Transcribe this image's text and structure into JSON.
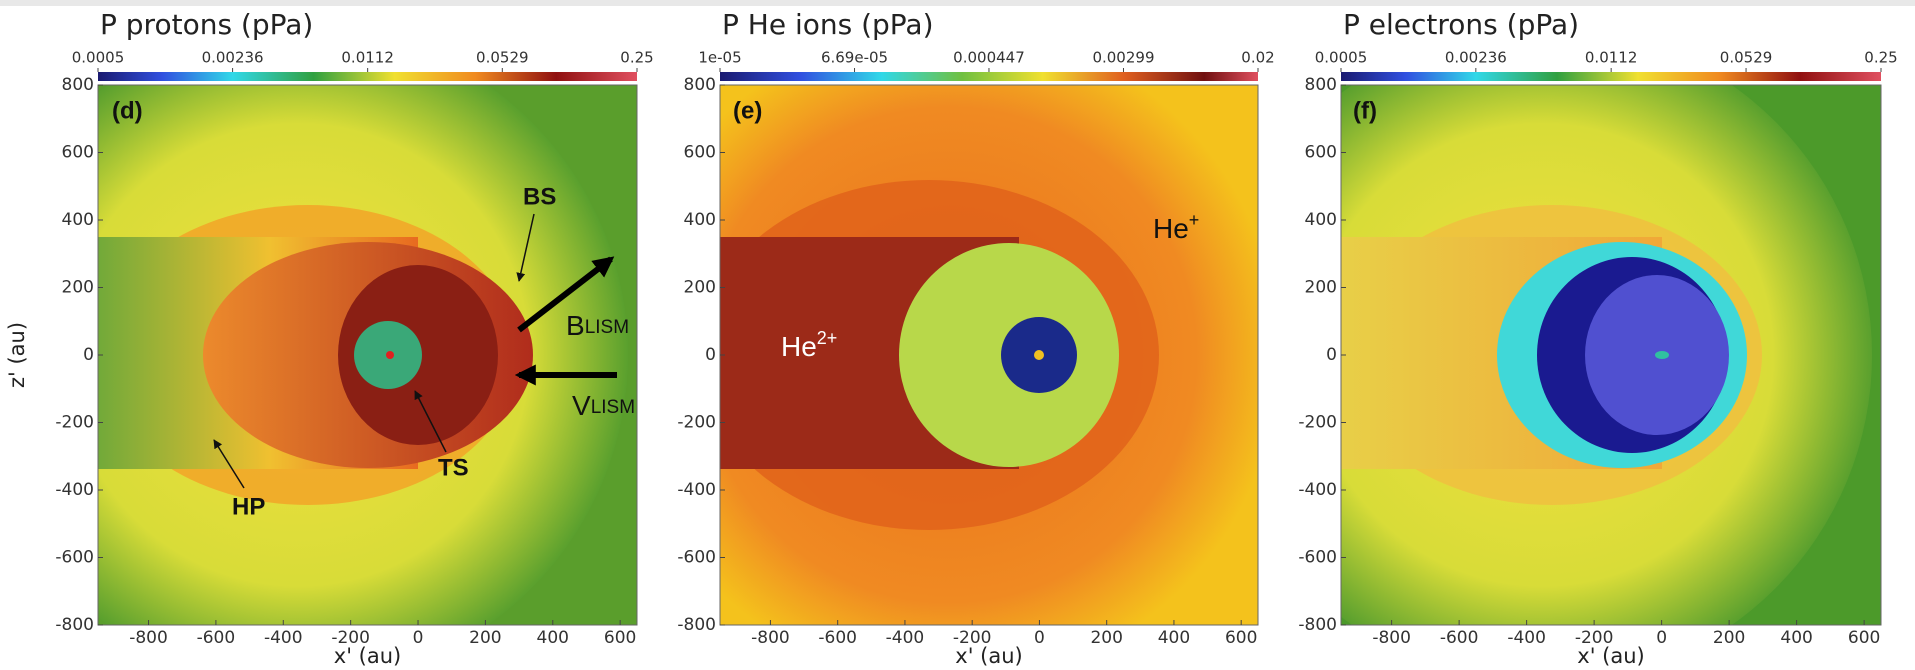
{
  "chart_data": [
    {
      "type": "heatmap",
      "title": "P protons (pPa)",
      "panel_label": "(d)",
      "xlabel": "x' (au)",
      "ylabel": "z' (au)",
      "xlim": [
        -950,
        650
      ],
      "ylim": [
        -800,
        800
      ],
      "xticks": [
        -800,
        -600,
        -400,
        -200,
        0,
        200,
        400,
        600
      ],
      "yticks": [
        -800,
        -600,
        -400,
        -200,
        0,
        200,
        400,
        600,
        800
      ],
      "colorbar": {
        "lim": [
          0.0005,
          0.25
        ],
        "log": true,
        "ticks": [
          0.0005,
          0.00236,
          0.0112,
          0.0529,
          0.25
        ]
      },
      "annotations": [
        {
          "text": "BS"
        },
        {
          "text": "B",
          "sub": "LISM"
        },
        {
          "text": "V",
          "sub": "LISM"
        },
        {
          "text": "TS"
        },
        {
          "text": "HP"
        }
      ]
    },
    {
      "type": "heatmap",
      "title": "P He ions (pPa)",
      "panel_label": "(e)",
      "xlabel": "x' (au)",
      "xlim": [
        -950,
        650
      ],
      "ylim": [
        -800,
        800
      ],
      "xticks": [
        -800,
        -600,
        -400,
        -200,
        0,
        200,
        400,
        600
      ],
      "yticks": [
        -800,
        -600,
        -400,
        -200,
        0,
        200,
        400,
        600,
        800
      ],
      "colorbar": {
        "lim": [
          1e-05,
          0.02
        ],
        "log": true,
        "ticks": [
          {
            "value": 1e-05,
            "label": "1e-05"
          },
          {
            "value": 6.69e-05,
            "label": "6.69e-05"
          },
          0.000447,
          0.00299,
          0.02
        ]
      },
      "annotations": [
        {
          "text": "He",
          "sup": "+"
        },
        {
          "text": "He",
          "sup": "2+"
        }
      ]
    },
    {
      "type": "heatmap",
      "title": "P electrons (pPa)",
      "panel_label": "(f)",
      "xlabel": "x' (au)",
      "xlim": [
        -950,
        650
      ],
      "ylim": [
        -800,
        800
      ],
      "xticks": [
        -800,
        -600,
        -400,
        -200,
        0,
        200,
        400,
        600
      ],
      "yticks": [
        -800,
        -600,
        -400,
        -200,
        0,
        200,
        400,
        600,
        800
      ],
      "colorbar": {
        "lim": [
          0.0005,
          0.25
        ],
        "log": true,
        "ticks": [
          0.0005,
          0.00236,
          0.0112,
          0.0529,
          0.25
        ]
      }
    }
  ]
}
